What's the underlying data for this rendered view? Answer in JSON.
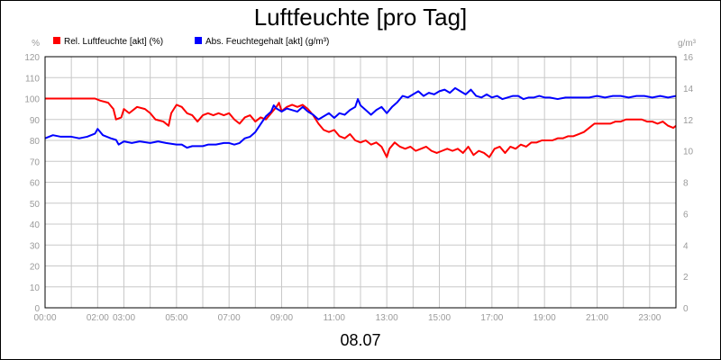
{
  "chart_data": {
    "type": "line",
    "title": "Luftfeuchte [pro Tag]",
    "date_label": "08.07",
    "y_left_unit": "%",
    "y_right_unit": "g/m³",
    "y_left_range": [
      0,
      120
    ],
    "y_right_range": [
      0,
      16
    ],
    "y_left_ticks": [
      0,
      10,
      20,
      30,
      40,
      50,
      60,
      70,
      80,
      90,
      100,
      110,
      120
    ],
    "y_right_ticks": [
      0,
      2,
      4,
      6,
      8,
      10,
      12,
      14,
      16
    ],
    "x_range_hours": [
      0,
      24
    ],
    "x_ticks": [
      {
        "h": 0,
        "label": "00:00"
      },
      {
        "h": 2,
        "label": "02:00"
      },
      {
        "h": 3,
        "label": "03:00"
      },
      {
        "h": 5,
        "label": "05:00"
      },
      {
        "h": 7,
        "label": "07:00"
      },
      {
        "h": 9,
        "label": "09:00"
      },
      {
        "h": 11,
        "label": "11:00"
      },
      {
        "h": 13,
        "label": "13:00"
      },
      {
        "h": 15,
        "label": "15:00"
      },
      {
        "h": 17,
        "label": "17:00"
      },
      {
        "h": 19,
        "label": "19:00"
      },
      {
        "h": 21,
        "label": "21:00"
      },
      {
        "h": 23,
        "label": "23:00"
      }
    ],
    "grid": true,
    "legend_position": "top-left",
    "series": [
      {
        "name": "Rel. Luftfeuchte [akt] (%)",
        "color": "#ff0000",
        "axis": "left",
        "points": [
          [
            0,
            100
          ],
          [
            0.5,
            100
          ],
          [
            1,
            100
          ],
          [
            1.5,
            100
          ],
          [
            1.9,
            100
          ],
          [
            2.1,
            99
          ],
          [
            2.4,
            98
          ],
          [
            2.6,
            95
          ],
          [
            2.7,
            90
          ],
          [
            2.9,
            91
          ],
          [
            3.0,
            95
          ],
          [
            3.2,
            93
          ],
          [
            3.5,
            96
          ],
          [
            3.8,
            95
          ],
          [
            4.0,
            93
          ],
          [
            4.2,
            90
          ],
          [
            4.5,
            89
          ],
          [
            4.7,
            87
          ],
          [
            4.8,
            93
          ],
          [
            5.0,
            97
          ],
          [
            5.2,
            96
          ],
          [
            5.4,
            93
          ],
          [
            5.6,
            92
          ],
          [
            5.8,
            89
          ],
          [
            6.0,
            92
          ],
          [
            6.2,
            93
          ],
          [
            6.4,
            92
          ],
          [
            6.6,
            93
          ],
          [
            6.8,
            92
          ],
          [
            7.0,
            93
          ],
          [
            7.2,
            90
          ],
          [
            7.4,
            88
          ],
          [
            7.6,
            91
          ],
          [
            7.8,
            92
          ],
          [
            8.0,
            89
          ],
          [
            8.2,
            91
          ],
          [
            8.4,
            90
          ],
          [
            8.6,
            93
          ],
          [
            8.8,
            96
          ],
          [
            8.9,
            98
          ],
          [
            9.0,
            94
          ],
          [
            9.2,
            96
          ],
          [
            9.4,
            97
          ],
          [
            9.6,
            96
          ],
          [
            9.8,
            97
          ],
          [
            10.0,
            95
          ],
          [
            10.2,
            92
          ],
          [
            10.4,
            88
          ],
          [
            10.6,
            85
          ],
          [
            10.8,
            84
          ],
          [
            11.0,
            85
          ],
          [
            11.2,
            82
          ],
          [
            11.4,
            81
          ],
          [
            11.6,
            83
          ],
          [
            11.8,
            80
          ],
          [
            12.0,
            79
          ],
          [
            12.2,
            80
          ],
          [
            12.4,
            78
          ],
          [
            12.6,
            79
          ],
          [
            12.8,
            77
          ],
          [
            13.0,
            72
          ],
          [
            13.1,
            76
          ],
          [
            13.3,
            79
          ],
          [
            13.5,
            77
          ],
          [
            13.7,
            76
          ],
          [
            13.9,
            77
          ],
          [
            14.1,
            75
          ],
          [
            14.3,
            76
          ],
          [
            14.5,
            77
          ],
          [
            14.7,
            75
          ],
          [
            14.9,
            74
          ],
          [
            15.1,
            75
          ],
          [
            15.3,
            76
          ],
          [
            15.5,
            75
          ],
          [
            15.7,
            76
          ],
          [
            15.9,
            74
          ],
          [
            16.1,
            77
          ],
          [
            16.3,
            73
          ],
          [
            16.5,
            75
          ],
          [
            16.7,
            74
          ],
          [
            16.9,
            72
          ],
          [
            17.1,
            76
          ],
          [
            17.3,
            77
          ],
          [
            17.5,
            74
          ],
          [
            17.7,
            77
          ],
          [
            17.9,
            76
          ],
          [
            18.1,
            78
          ],
          [
            18.3,
            77
          ],
          [
            18.5,
            79
          ],
          [
            18.7,
            79
          ],
          [
            18.9,
            80
          ],
          [
            19.1,
            80
          ],
          [
            19.3,
            80
          ],
          [
            19.5,
            81
          ],
          [
            19.7,
            81
          ],
          [
            19.9,
            82
          ],
          [
            20.1,
            82
          ],
          [
            20.3,
            83
          ],
          [
            20.5,
            84
          ],
          [
            20.7,
            86
          ],
          [
            20.9,
            88
          ],
          [
            21.1,
            88
          ],
          [
            21.3,
            88
          ],
          [
            21.5,
            88
          ],
          [
            21.7,
            89
          ],
          [
            21.9,
            89
          ],
          [
            22.1,
            90
          ],
          [
            22.3,
            90
          ],
          [
            22.5,
            90
          ],
          [
            22.7,
            90
          ],
          [
            22.9,
            89
          ],
          [
            23.1,
            89
          ],
          [
            23.3,
            88
          ],
          [
            23.5,
            89
          ],
          [
            23.7,
            87
          ],
          [
            23.9,
            86
          ],
          [
            24.0,
            87
          ]
        ]
      },
      {
        "name": "Abs. Feuchtegehalt [akt] (g/m³)",
        "color": "#0000ff",
        "axis": "right",
        "points": [
          [
            0,
            10.8
          ],
          [
            0.3,
            11.0
          ],
          [
            0.6,
            10.9
          ],
          [
            1.0,
            10.9
          ],
          [
            1.3,
            10.8
          ],
          [
            1.6,
            10.9
          ],
          [
            1.9,
            11.1
          ],
          [
            2.0,
            11.4
          ],
          [
            2.2,
            11.0
          ],
          [
            2.5,
            10.8
          ],
          [
            2.7,
            10.7
          ],
          [
            2.8,
            10.4
          ],
          [
            3.0,
            10.6
          ],
          [
            3.3,
            10.5
          ],
          [
            3.6,
            10.6
          ],
          [
            4.0,
            10.5
          ],
          [
            4.3,
            10.6
          ],
          [
            4.6,
            10.5
          ],
          [
            5.0,
            10.4
          ],
          [
            5.2,
            10.4
          ],
          [
            5.4,
            10.2
          ],
          [
            5.6,
            10.3
          ],
          [
            5.8,
            10.3
          ],
          [
            6.0,
            10.3
          ],
          [
            6.2,
            10.4
          ],
          [
            6.5,
            10.4
          ],
          [
            6.8,
            10.5
          ],
          [
            7.0,
            10.5
          ],
          [
            7.2,
            10.4
          ],
          [
            7.4,
            10.5
          ],
          [
            7.6,
            10.8
          ],
          [
            7.8,
            10.9
          ],
          [
            8.0,
            11.2
          ],
          [
            8.2,
            11.7
          ],
          [
            8.4,
            12.2
          ],
          [
            8.6,
            12.5
          ],
          [
            8.7,
            12.9
          ],
          [
            8.8,
            12.7
          ],
          [
            9.0,
            12.5
          ],
          [
            9.2,
            12.7
          ],
          [
            9.4,
            12.6
          ],
          [
            9.6,
            12.5
          ],
          [
            9.8,
            12.8
          ],
          [
            10.0,
            12.5
          ],
          [
            10.2,
            12.3
          ],
          [
            10.4,
            12.0
          ],
          [
            10.6,
            12.2
          ],
          [
            10.8,
            12.4
          ],
          [
            11.0,
            12.1
          ],
          [
            11.2,
            12.4
          ],
          [
            11.4,
            12.3
          ],
          [
            11.6,
            12.6
          ],
          [
            11.8,
            12.8
          ],
          [
            11.9,
            13.3
          ],
          [
            12.0,
            12.9
          ],
          [
            12.2,
            12.6
          ],
          [
            12.4,
            12.3
          ],
          [
            12.6,
            12.6
          ],
          [
            12.8,
            12.8
          ],
          [
            13.0,
            12.4
          ],
          [
            13.2,
            12.8
          ],
          [
            13.4,
            13.1
          ],
          [
            13.6,
            13.5
          ],
          [
            13.8,
            13.4
          ],
          [
            14.0,
            13.6
          ],
          [
            14.2,
            13.8
          ],
          [
            14.4,
            13.5
          ],
          [
            14.6,
            13.7
          ],
          [
            14.8,
            13.6
          ],
          [
            15.0,
            13.8
          ],
          [
            15.2,
            13.9
          ],
          [
            15.4,
            13.7
          ],
          [
            15.6,
            14.0
          ],
          [
            15.8,
            13.8
          ],
          [
            16.0,
            13.6
          ],
          [
            16.2,
            13.9
          ],
          [
            16.4,
            13.5
          ],
          [
            16.6,
            13.4
          ],
          [
            16.8,
            13.6
          ],
          [
            17.0,
            13.4
          ],
          [
            17.2,
            13.5
          ],
          [
            17.4,
            13.3
          ],
          [
            17.6,
            13.4
          ],
          [
            17.8,
            13.5
          ],
          [
            18.0,
            13.5
          ],
          [
            18.2,
            13.3
          ],
          [
            18.4,
            13.4
          ],
          [
            18.6,
            13.4
          ],
          [
            18.8,
            13.5
          ],
          [
            19.0,
            13.4
          ],
          [
            19.2,
            13.4
          ],
          [
            19.5,
            13.3
          ],
          [
            19.8,
            13.4
          ],
          [
            20.1,
            13.4
          ],
          [
            20.4,
            13.4
          ],
          [
            20.7,
            13.4
          ],
          [
            21.0,
            13.5
          ],
          [
            21.3,
            13.4
          ],
          [
            21.6,
            13.5
          ],
          [
            21.9,
            13.5
          ],
          [
            22.2,
            13.4
          ],
          [
            22.5,
            13.5
          ],
          [
            22.8,
            13.5
          ],
          [
            23.1,
            13.4
          ],
          [
            23.4,
            13.5
          ],
          [
            23.7,
            13.4
          ],
          [
            24.0,
            13.5
          ]
        ]
      }
    ]
  }
}
